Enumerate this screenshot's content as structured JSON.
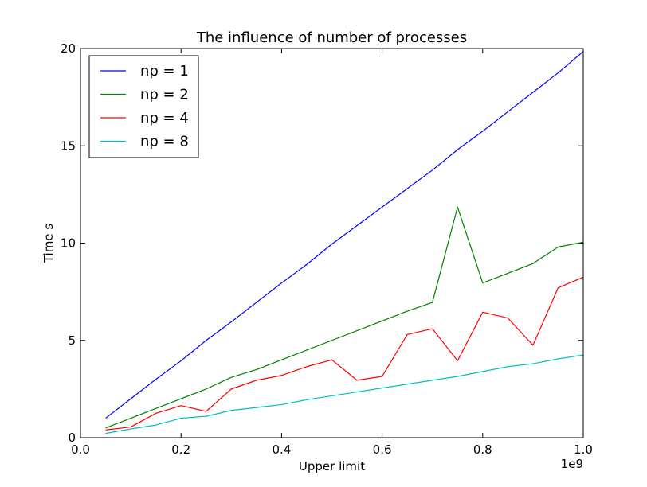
{
  "chart_data": {
    "type": "line",
    "title": "The influence of number of processes",
    "xlabel": "Upper limit",
    "ylabel": "Time s",
    "x_offset_label": "1e9",
    "xlim": [
      0.0,
      1.0
    ],
    "ylim": [
      0,
      20
    ],
    "xticks": [
      0.0,
      0.2,
      0.4,
      0.6,
      0.8,
      1.0
    ],
    "xtick_labels": [
      "0.0",
      "0.2",
      "0.4",
      "0.6",
      "0.8",
      "1.0"
    ],
    "yticks": [
      0,
      5,
      10,
      15,
      20
    ],
    "ytick_labels": [
      "0",
      "5",
      "10",
      "15",
      "20"
    ],
    "grid": false,
    "legend": "top-left",
    "x": [
      0.05,
      0.1,
      0.15,
      0.2,
      0.25,
      0.3,
      0.35,
      0.4,
      0.45,
      0.5,
      0.55,
      0.6,
      0.65,
      0.7,
      0.75,
      0.8,
      0.85,
      0.9,
      0.95,
      1.0
    ],
    "series": [
      {
        "name": "np = 1",
        "color": "#0000ff",
        "values": [
          1.0,
          2.0,
          3.0,
          3.95,
          5.0,
          5.95,
          6.95,
          7.95,
          8.9,
          9.95,
          10.9,
          11.85,
          12.8,
          13.75,
          14.8,
          15.75,
          16.75,
          17.75,
          18.75,
          19.85
        ]
      },
      {
        "name": "np = 2",
        "color": "#008000",
        "values": [
          0.5,
          1.0,
          1.5,
          2.0,
          2.5,
          3.1,
          3.5,
          4.0,
          4.5,
          5.0,
          5.5,
          6.0,
          6.5,
          6.95,
          11.85,
          7.95,
          8.45,
          8.95,
          9.8,
          10.05
        ]
      },
      {
        "name": "np = 4",
        "color": "#ff0000",
        "values": [
          0.4,
          0.55,
          1.25,
          1.65,
          1.35,
          2.5,
          2.95,
          3.2,
          3.65,
          4.0,
          2.95,
          3.15,
          5.3,
          5.6,
          3.95,
          6.45,
          6.15,
          4.75,
          7.7,
          8.25
        ]
      },
      {
        "name": "np = 8",
        "color": "#00bfbf",
        "values": [
          0.22,
          0.45,
          0.65,
          1.0,
          1.1,
          1.4,
          1.55,
          1.7,
          1.95,
          2.15,
          2.35,
          2.55,
          2.75,
          2.95,
          3.15,
          3.4,
          3.65,
          3.8,
          4.05,
          4.25
        ]
      }
    ]
  }
}
